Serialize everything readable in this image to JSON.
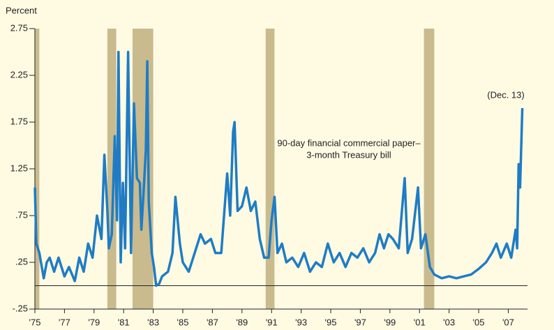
{
  "chart_data": {
    "type": "line",
    "y_axis_label": "Percent",
    "annotations": [
      "90-day financial commercial paper–",
      "3-month Treasury bill",
      "(Dec. 13)"
    ],
    "xlim": [
      1975,
      2008.3
    ],
    "ylim": [
      -0.25,
      2.75
    ],
    "yticks": [
      2.75,
      2.25,
      1.75,
      1.25,
      {
        "value": 0.75,
        "label": ".75"
      },
      {
        "value": 0.25,
        "label": ".25"
      },
      {
        "value": -0.25,
        "label": "-.25"
      }
    ],
    "xticks": [
      {
        "value": 1975,
        "label": "'75"
      },
      {
        "value": 1977,
        "label": "'77"
      },
      {
        "value": 1979,
        "label": "'79"
      },
      {
        "value": 1981,
        "label": "'81"
      },
      {
        "value": 1983,
        "label": "'83"
      },
      {
        "value": 1985,
        "label": "'85"
      },
      {
        "value": 1987,
        "label": "'87"
      },
      {
        "value": 1989,
        "label": "'89"
      },
      {
        "value": 1991,
        "label": "'91"
      },
      {
        "value": 1993,
        "label": "'93"
      },
      {
        "value": 1995,
        "label": "'95"
      },
      {
        "value": 1997,
        "label": "'97"
      },
      {
        "value": 1999,
        "label": "'99"
      },
      {
        "value": 2001,
        "label": "'01"
      },
      {
        "value": 2003,
        "label": "'03"
      },
      {
        "value": 2005,
        "label": "'05"
      },
      {
        "value": 2007,
        "label": "'07"
      }
    ],
    "reference_line": 0,
    "recessions": [
      [
        1975.0,
        1975.3
      ],
      [
        1979.9,
        1980.5
      ],
      [
        1981.6,
        1983.0
      ],
      [
        1990.6,
        1991.2
      ],
      [
        2001.3,
        2002.0
      ]
    ],
    "recession_color": "#c9bb8e",
    "background": "#fffbe3",
    "x": [
      1975.0,
      1975.1,
      1975.3,
      1975.6,
      1975.8,
      1976.0,
      1976.3,
      1976.6,
      1977.0,
      1977.3,
      1977.7,
      1978.0,
      1978.3,
      1978.6,
      1978.9,
      1979.2,
      1979.5,
      1979.7,
      1979.9,
      1980.0,
      1980.2,
      1980.4,
      1980.55,
      1980.65,
      1980.8,
      1980.95,
      1981.1,
      1981.3,
      1981.5,
      1981.7,
      1981.9,
      1982.1,
      1982.2,
      1982.35,
      1982.5,
      1982.6,
      1982.7,
      1982.9,
      1983.05,
      1983.2,
      1983.4,
      1983.6,
      1984.0,
      1984.3,
      1984.5,
      1984.8,
      1985.0,
      1985.4,
      1985.8,
      1986.2,
      1986.5,
      1986.9,
      1987.2,
      1987.6,
      1988.0,
      1988.2,
      1988.4,
      1988.5,
      1988.7,
      1989.0,
      1989.3,
      1989.6,
      1989.9,
      1990.2,
      1990.5,
      1990.8,
      1991.0,
      1991.2,
      1991.4,
      1991.7,
      1992.0,
      1992.4,
      1992.8,
      1993.2,
      1993.6,
      1994.0,
      1994.4,
      1994.8,
      1995.2,
      1995.6,
      1996.0,
      1996.4,
      1996.8,
      1997.2,
      1997.6,
      1998.0,
      1998.3,
      1998.6,
      1998.9,
      1999.2,
      1999.6,
      2000.0,
      2000.2,
      2000.5,
      2000.9,
      2001.1,
      2001.4,
      2001.7,
      2002.0,
      2002.5,
      2003.0,
      2003.5,
      2004.0,
      2004.5,
      2005.0,
      2005.5,
      2005.9,
      2006.2,
      2006.5,
      2006.9,
      2007.2,
      2007.5,
      2007.6,
      2007.7,
      2007.8,
      2007.95
    ],
    "series": [
      {
        "name": "90-day financial commercial paper–3-month Treasury bill",
        "color": "#1f7cc4",
        "values": [
          1.05,
          0.45,
          0.35,
          0.08,
          0.25,
          0.3,
          0.15,
          0.3,
          0.1,
          0.2,
          0.05,
          0.3,
          0.15,
          0.45,
          0.3,
          0.75,
          0.5,
          1.4,
          0.8,
          0.4,
          0.55,
          1.6,
          0.7,
          2.5,
          0.25,
          1.1,
          0.4,
          2.5,
          0.35,
          1.95,
          1.15,
          1.1,
          0.6,
          1.0,
          1.45,
          2.4,
          0.9,
          0.35,
          0.2,
          0.0,
          0.02,
          0.1,
          0.15,
          0.35,
          0.95,
          0.45,
          0.25,
          0.15,
          0.35,
          0.55,
          0.45,
          0.5,
          0.35,
          0.35,
          1.2,
          0.75,
          1.65,
          1.75,
          0.8,
          0.85,
          1.05,
          0.8,
          0.9,
          0.5,
          0.3,
          0.3,
          0.7,
          0.95,
          0.35,
          0.45,
          0.25,
          0.3,
          0.2,
          0.35,
          0.15,
          0.25,
          0.2,
          0.45,
          0.25,
          0.35,
          0.2,
          0.35,
          0.3,
          0.4,
          0.25,
          0.35,
          0.55,
          0.4,
          0.55,
          0.5,
          0.4,
          1.15,
          0.35,
          0.5,
          1.05,
          0.4,
          0.55,
          0.2,
          0.12,
          0.08,
          0.1,
          0.08,
          0.1,
          0.12,
          0.18,
          0.25,
          0.35,
          0.45,
          0.3,
          0.45,
          0.3,
          0.6,
          0.4,
          1.3,
          1.05,
          1.9
        ]
      }
    ]
  }
}
